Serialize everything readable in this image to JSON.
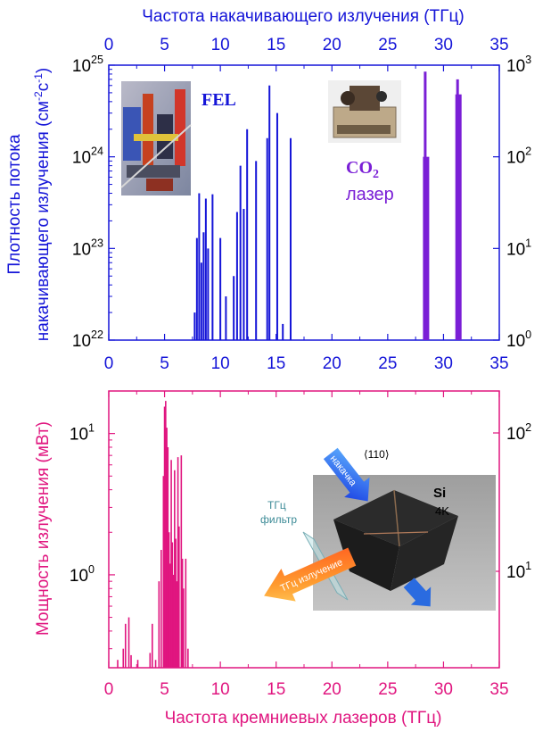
{
  "colors": {
    "top": "#1515d8",
    "co2": "#7a1fd6",
    "bottom": "#e0157f",
    "ink": "#000000"
  },
  "chart_data": [
    {
      "type": "bar",
      "top_axis_label": "Частота накачивающего излучения (ТГц)",
      "ylabel_line1": "Плотность потока",
      "ylabel_line2": "накачивающего излучения (см",
      "ylabel_sup1": "-2",
      "ylabel_mid": "с",
      "ylabel_sup2": "-1",
      "ylabel_end": ")",
      "xlim": [
        0,
        35
      ],
      "x_ticks": [
        "0",
        "5",
        "10",
        "15",
        "20",
        "25",
        "30",
        "35"
      ],
      "yscale": "log",
      "ylim": [
        1e+22,
        1e+25
      ],
      "y_ticks": [
        {
          "base": "10",
          "exp": "22"
        },
        {
          "base": "10",
          "exp": "23"
        },
        {
          "base": "10",
          "exp": "24"
        },
        {
          "base": "10",
          "exp": "25"
        }
      ],
      "y2scale": "log",
      "y2lim": [
        1,
        1000
      ],
      "y2_ticks": [
        {
          "base": "10",
          "exp": "0"
        },
        {
          "base": "10",
          "exp": "1"
        },
        {
          "base": "10",
          "exp": "2"
        },
        {
          "base": "10",
          "exp": "3"
        }
      ],
      "annotations": {
        "fel": "FEL",
        "co2_main": "CO",
        "co2_sub": "2",
        "co2_line2": "лазер"
      },
      "series": [
        {
          "name": "FEL",
          "x": [
            7.7,
            7.9,
            8.1,
            8.3,
            8.5,
            8.7,
            8.9,
            9.3,
            10.0,
            10.5,
            11.2,
            11.5,
            11.8,
            12.1,
            12.4,
            13.2,
            14.2,
            14.4,
            15.1,
            15.6,
            16.3
          ],
          "values": [
            2e+22,
            1.3e+23,
            4e+23,
            7e+22,
            1.5e+23,
            3.5e+23,
            1e+23,
            3.9e+23,
            1.3e+23,
            3e+22,
            5e+22,
            2.5e+23,
            8e+23,
            2.7e+23,
            2e+24,
            9e+23,
            1.6e+24,
            6e+24,
            3e+24,
            1.5e+22,
            1.6e+24
          ]
        },
        {
          "name": "CO2",
          "x": [
            28.4,
            31.3
          ],
          "values": [
            850,
            700
          ],
          "inner_values": [
            100,
            480
          ]
        }
      ]
    },
    {
      "type": "bar",
      "xlabel": "Частота кремниевых лазеров (ТГц)",
      "ylabel": "Мощность излучения (мВт)",
      "xlim": [
        0,
        35
      ],
      "x_ticks": [
        "0",
        "5",
        "10",
        "15",
        "20",
        "25",
        "30",
        "35"
      ],
      "yscale": "log",
      "ylim": [
        0.22,
        20
      ],
      "y_ticks": [
        {
          "base": "10",
          "exp": "0"
        },
        {
          "base": "10",
          "exp": "1"
        }
      ],
      "y2_ticks": [
        {
          "base": "10",
          "exp": "1"
        },
        {
          "base": "10",
          "exp": "2"
        }
      ],
      "series": [
        {
          "name": "",
          "x": [
            0.8,
            1.3,
            1.5,
            1.8,
            2.0,
            2.6,
            3.7,
            3.9,
            4.2,
            4.5,
            4.7,
            4.9,
            5.0,
            5.1,
            5.2,
            5.3,
            5.4,
            5.5,
            5.6,
            5.7,
            5.8,
            5.9,
            6.0,
            6.1,
            6.2,
            6.3,
            6.5,
            6.6,
            6.7,
            6.9,
            7.1
          ],
          "values": [
            0.25,
            0.3,
            0.45,
            0.5,
            0.27,
            0.25,
            0.28,
            0.45,
            0.25,
            0.9,
            1.5,
            5.0,
            15.5,
            17.0,
            11.0,
            8.0,
            2.0,
            1.2,
            6.5,
            1.7,
            1.0,
            5.5,
            1.8,
            0.9,
            6.8,
            2.2,
            7.0,
            1.3,
            0.8,
            1.3,
            0.3
          ]
        }
      ]
    }
  ],
  "inset_top_left": {
    "desc": "FEL facility photo"
  },
  "inset_top_right": {
    "desc": "CO2 laser photo"
  },
  "inset_bottom": {
    "direction": "⟨110⟩",
    "si": "Si",
    "temp": "4K",
    "filter_line1": "ТГц",
    "filter_line2": "фильтр",
    "pump": "накачка",
    "emission": "ТГц излучение"
  }
}
